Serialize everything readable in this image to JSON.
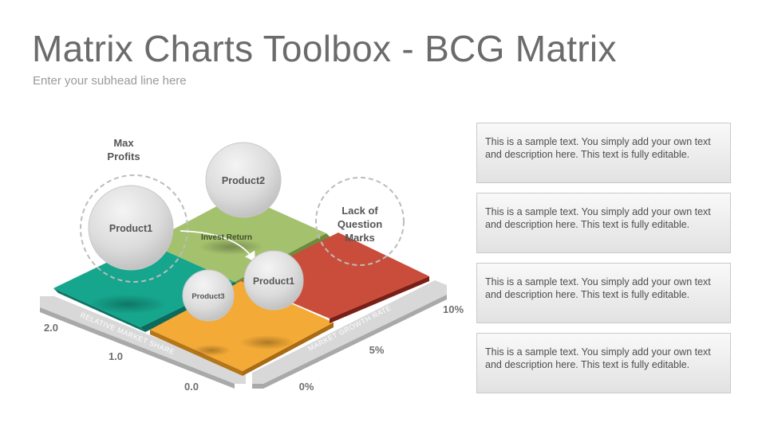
{
  "header": {
    "title": "Matrix Charts Toolbox - BCG Matrix",
    "subhead": "Enter your subhead line here"
  },
  "diagram": {
    "callouts": {
      "max_profits": [
        "Max",
        "Profits"
      ],
      "lack_of_question_marks": [
        "Lack of",
        "Question",
        "Marks"
      ],
      "invest_return": "Invest Return"
    },
    "bubbles": {
      "product1_large": "Product1",
      "product2": "Product2",
      "product1_small": "Product1",
      "product3": "Product3"
    },
    "axes": {
      "left_label": "RELATIVE MARKET SHARE",
      "left_ticks": [
        "2.0",
        "1.0",
        "0.0"
      ],
      "right_label": "MARKET GROWTH RATE",
      "right_ticks": [
        "0%",
        "5%",
        "10%"
      ]
    },
    "colors": {
      "teal": "#16a58d",
      "green": "#a4c16d",
      "orange": "#f3aa36",
      "red": "#c94d3a"
    }
  },
  "text_boxes": [
    "This is a sample text. You simply add your own text and description here. This text is fully editable.",
    "This is a sample text. You simply add your own text and description here. This text is fully editable.",
    "This is a sample text. You simply add your own text and description here. This text is fully editable.",
    "This is a sample text. You simply add your own text and description here. This text is fully editable."
  ]
}
